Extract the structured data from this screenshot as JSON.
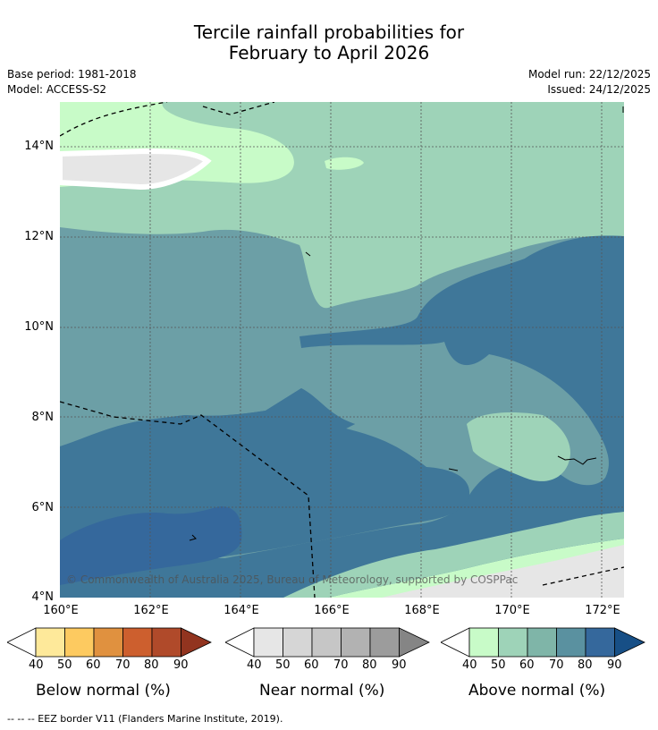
{
  "title": {
    "line1": "Tercile rainfall probabilities for",
    "line2": "February to April 2026"
  },
  "meta": {
    "base_period": "Base period: 1981-2018",
    "model": "Model: ACCESS-S2",
    "model_run": "Model run: 22/12/2025",
    "issued": "Issued: 24/12/2025"
  },
  "map": {
    "lat_ticks": [
      "14°N",
      "12°N",
      "10°N",
      "8°N",
      "6°N",
      "4°N"
    ],
    "lon_ticks": [
      "160°E",
      "162°E",
      "164°E",
      "166°E",
      "168°E",
      "170°E",
      "172°E"
    ],
    "copyright": "© Commonwealth of Australia 2025, Bureau of Meteorology, supported by COSPPac",
    "extent": {
      "lon": [
        160,
        172.5
      ],
      "lat": [
        4,
        15
      ]
    }
  },
  "colorbars": [
    {
      "title": "Below normal (%)",
      "labels": [
        "40",
        "50",
        "60",
        "70",
        "80",
        "90"
      ],
      "colors": [
        "#fee99a",
        "#fdca60",
        "#e0913f",
        "#cd5f2e",
        "#b04a2a",
        "#92341f"
      ]
    },
    {
      "title": "Near normal (%)",
      "labels": [
        "40",
        "50",
        "60",
        "70",
        "80",
        "90"
      ],
      "colors": [
        "#e6e6e6",
        "#d6d6d6",
        "#c6c6c6",
        "#b2b2b2",
        "#9c9c9c",
        "#858585"
      ]
    },
    {
      "title": "Above normal (%)",
      "labels": [
        "40",
        "50",
        "60",
        "70",
        "80",
        "90"
      ],
      "colors": [
        "#c8fbc8",
        "#9ed3b8",
        "#7fb5a8",
        "#5a91a0",
        "#35689c",
        "#174f86"
      ]
    }
  ],
  "footnote": "--  --  -- EEZ border V11 (Flanders Marine Institute, 2019)."
}
